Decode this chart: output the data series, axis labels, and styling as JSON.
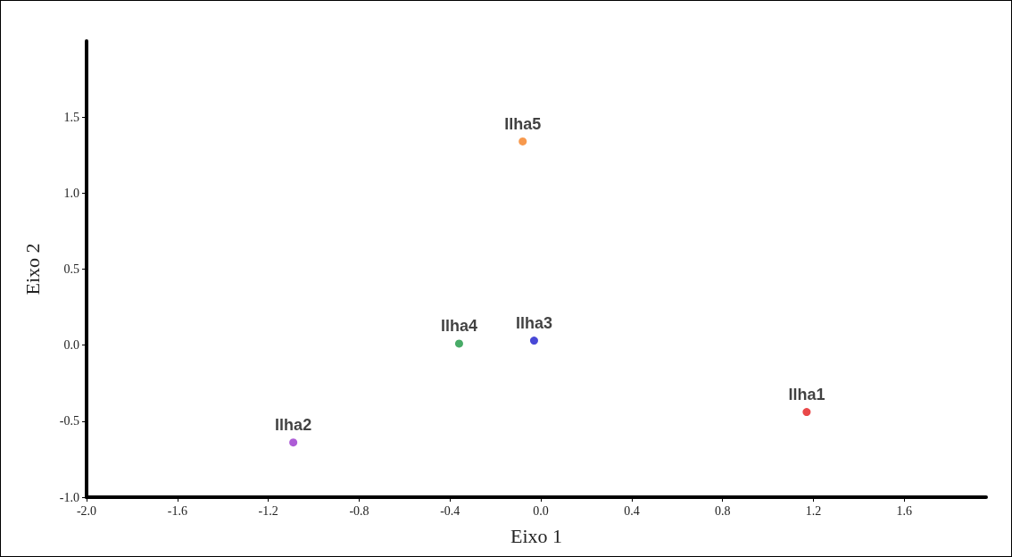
{
  "chart_data": {
    "type": "scatter",
    "xlabel": "Eixo 1",
    "ylabel": "Eixo 2",
    "xlim": [
      -2,
      1.96
    ],
    "ylim": [
      -1,
      2
    ],
    "xticks": [
      {
        "value": -2,
        "label": "-2.0"
      },
      {
        "value": -1.6,
        "label": "-1.6"
      },
      {
        "value": -1.2,
        "label": "-1.2"
      },
      {
        "value": -0.8,
        "label": "-0.8"
      },
      {
        "value": -0.4,
        "label": "-0.4"
      },
      {
        "value": 0,
        "label": "0.0"
      },
      {
        "value": 0.4,
        "label": "0.4"
      },
      {
        "value": 0.8,
        "label": "0.8"
      },
      {
        "value": 1.2,
        "label": "1.2"
      },
      {
        "value": 1.6,
        "label": "1.6"
      }
    ],
    "yticks": [
      {
        "value": -1,
        "label": "-1.0"
      },
      {
        "value": -0.5,
        "label": "-0.5"
      },
      {
        "value": 0,
        "label": "0.0"
      },
      {
        "value": 0.5,
        "label": "0.5"
      },
      {
        "value": 1,
        "label": "1.0"
      },
      {
        "value": 1.5,
        "label": "1.5"
      }
    ],
    "grid": false,
    "legend": false,
    "marker": "circle",
    "series": [
      {
        "name": "Ilha1",
        "color": "#e31a1c",
        "x": [
          1.17
        ],
        "values": [
          -0.44
        ]
      },
      {
        "name": "Ilha2",
        "color": "#9933cc",
        "x": [
          -1.09
        ],
        "values": [
          -0.64
        ]
      },
      {
        "name": "Ilha3",
        "color": "#1a1acc",
        "x": [
          -0.03
        ],
        "values": [
          0.03
        ]
      },
      {
        "name": "Ilha4",
        "color": "#1a9641",
        "x": [
          -0.36
        ],
        "values": [
          0.01
        ]
      },
      {
        "name": "Ilha5",
        "color": "#f57f20",
        "x": [
          -0.08
        ],
        "values": [
          1.34
        ]
      }
    ]
  }
}
